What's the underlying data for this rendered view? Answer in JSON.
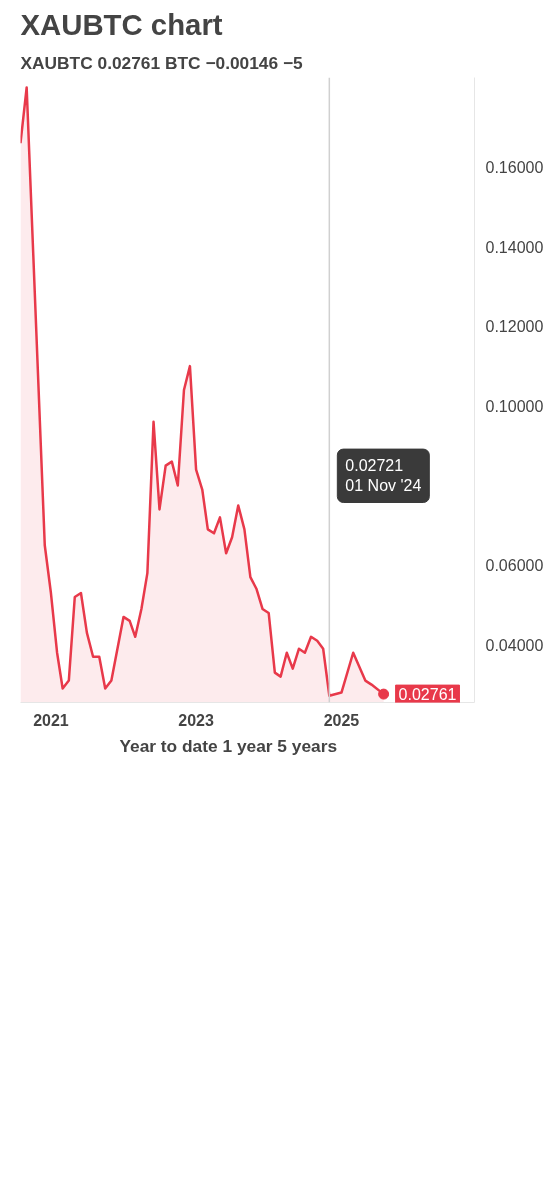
{
  "chart_data": {
    "type": "area",
    "title": "XAUBTC chart",
    "subtitle": "XAUBTC  0.02761 BTC  −0.00146  −5",
    "x": [
      "2020-08",
      "2020-09",
      "2020-12",
      "2021-01",
      "2021-02",
      "2021-03",
      "2021-04",
      "2021-05",
      "2021-06",
      "2021-07",
      "2021-08",
      "2021-09",
      "2021-10",
      "2021-11",
      "2022-01",
      "2022-02",
      "2022-03",
      "2022-04",
      "2022-05",
      "2022-06",
      "2022-07",
      "2022-08",
      "2022-09",
      "2022-10",
      "2022-11",
      "2022-12",
      "2023-01",
      "2023-02",
      "2023-03",
      "2023-04",
      "2023-05",
      "2023-06",
      "2023-07",
      "2023-08",
      "2023-09",
      "2023-10",
      "2023-11",
      "2023-12",
      "2024-01",
      "2024-02",
      "2024-03",
      "2024-04",
      "2024-05",
      "2024-06",
      "2024-07",
      "2024-08",
      "2024-09",
      "2024-10",
      "2024-11",
      "2025-01",
      "2025-03",
      "2025-05",
      "2025-06",
      "2025-08"
    ],
    "series": [
      {
        "color": "#e8394a",
        "values": [
          0.166,
          0.18,
          0.065,
          0.053,
          0.038,
          0.029,
          0.031,
          0.052,
          0.053,
          0.043,
          0.037,
          0.037,
          0.029,
          0.031,
          0.047,
          0.046,
          0.042,
          0.049,
          0.058,
          0.096,
          0.074,
          0.085,
          0.086,
          0.08,
          0.104,
          0.11,
          0.084,
          0.079,
          0.069,
          0.068,
          0.072,
          0.063,
          0.067,
          0.075,
          0.069,
          0.057,
          0.054,
          0.049,
          0.048,
          0.033,
          0.032,
          0.038,
          0.034,
          0.039,
          0.038,
          0.042,
          0.041,
          0.039,
          0.0272,
          0.028,
          0.038,
          0.031,
          0.03,
          0.0276
        ]
      }
    ],
    "xlim": [
      "2020-08",
      "2026-11"
    ],
    "xticks": [
      "2021",
      "2023",
      "2025"
    ],
    "ylim": [
      0.0255,
      0.1825
    ],
    "yticks": [
      {
        "value": 0.04,
        "label": "0.04000"
      },
      {
        "value": 0.06,
        "label": "0.06000"
      },
      {
        "value": 0.1,
        "label": "0.10000"
      },
      {
        "value": 0.12,
        "label": "0.12000"
      },
      {
        "value": 0.14,
        "label": "0.14000"
      },
      {
        "value": 0.16,
        "label": "0.16000"
      }
    ],
    "ref_lines": [
      {
        "axis": "x",
        "value": "2024-11-01",
        "color": "#d0d0d0"
      }
    ],
    "annotations": [
      "0.02721\n01 Nov '24",
      {
        "text": "0.02761",
        "x": "2025-08",
        "y": 0.02761
      },
      "Year to date     1 year     5 years"
    ],
    "grid": false
  }
}
